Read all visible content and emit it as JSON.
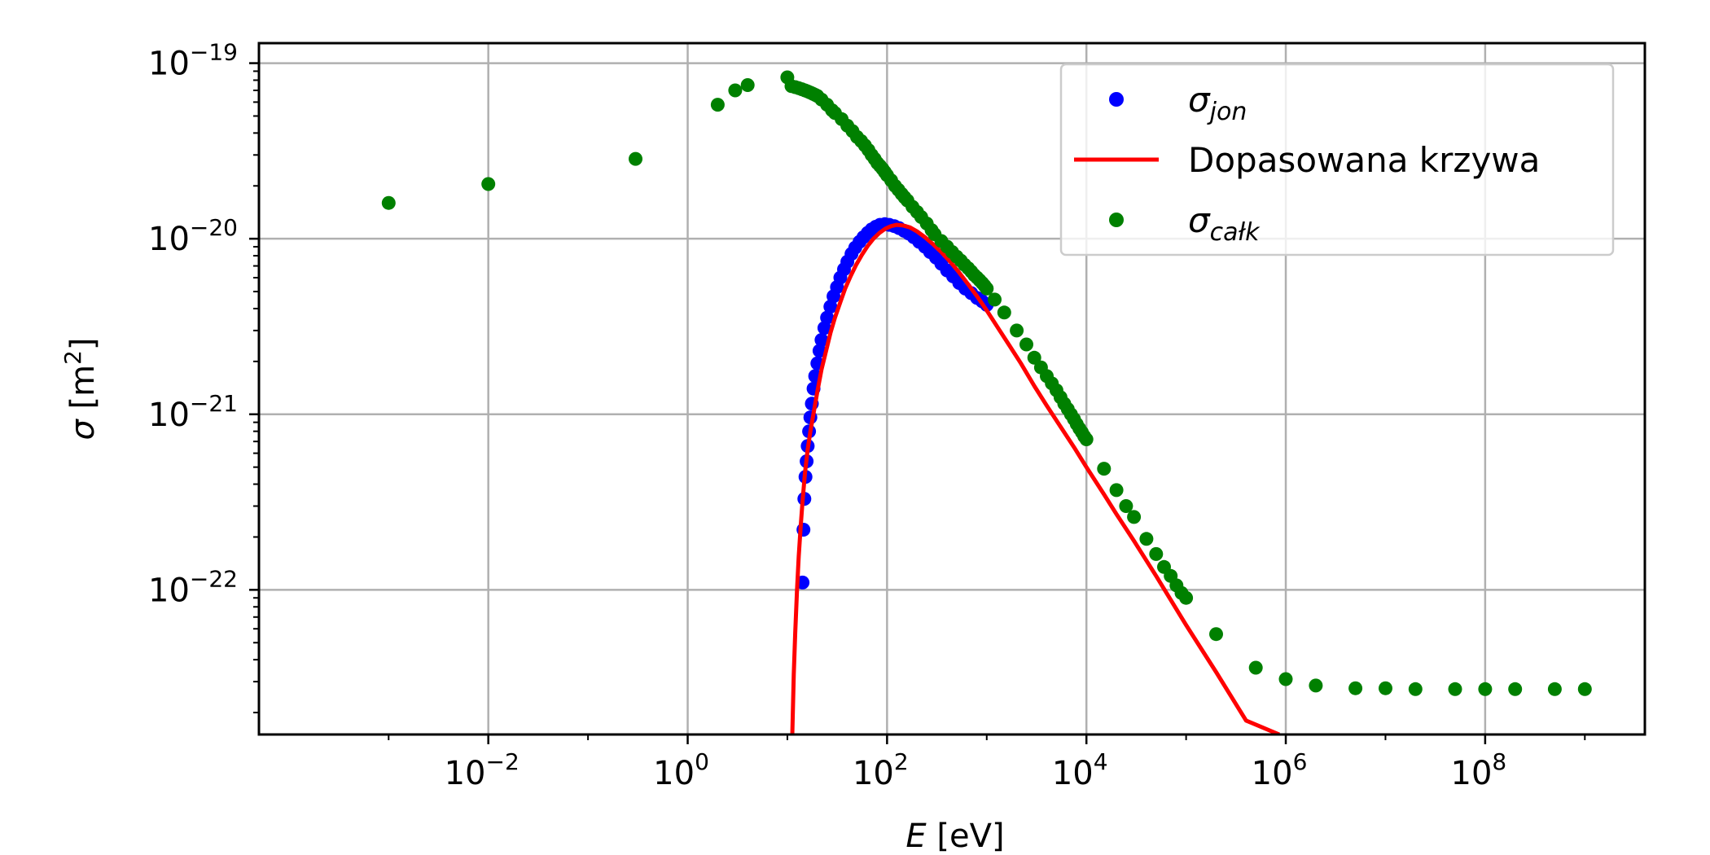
{
  "chart_data": {
    "type": "scatter",
    "xscale": "log",
    "yscale": "log",
    "xlim": [
      5e-05,
      4000000000
    ],
    "ylim": [
      1.5e-23,
      1.3e-19
    ],
    "grid": true,
    "legend_placement": "top-right",
    "xlabel": {
      "symbol": "E",
      "unit": " [eV]"
    },
    "ylabel": {
      "symbol": "σ",
      "unit_prefix": " [m",
      "unit_sup": "2",
      "unit_suffix": "]"
    },
    "xticks": [
      {
        "value": 0.01,
        "base": "10",
        "exp": "−2"
      },
      {
        "value": 1,
        "base": "10",
        "exp": "0"
      },
      {
        "value": 100,
        "base": "10",
        "exp": "2"
      },
      {
        "value": 10000,
        "base": "10",
        "exp": "4"
      },
      {
        "value": 1000000,
        "base": "10",
        "exp": "6"
      },
      {
        "value": 100000000,
        "base": "10",
        "exp": "8"
      }
    ],
    "yticks": [
      {
        "value": 1e-22,
        "base": "10",
        "exp": "−22"
      },
      {
        "value": 1e-21,
        "base": "10",
        "exp": "−21"
      },
      {
        "value": 1e-20,
        "base": "10",
        "exp": "−20"
      },
      {
        "value": 1e-19,
        "base": "10",
        "exp": "−19"
      }
    ],
    "series": [
      {
        "name_main": "σ",
        "name_sub": "jon",
        "kind": "scatter",
        "color": "#0000ff",
        "x": [
          14.2,
          14.5,
          14.8,
          15.2,
          15.6,
          16,
          16.5,
          17,
          17.6,
          18.3,
          19,
          20,
          21,
          22,
          23.5,
          25,
          27,
          29,
          31.5,
          34,
          37,
          40,
          44,
          48,
          53,
          58,
          64,
          70,
          77,
          85,
          95,
          105,
          118,
          132,
          148,
          165,
          185,
          210,
          240,
          270,
          310,
          350,
          400,
          460,
          530,
          610,
          700,
          800,
          900,
          1000
        ],
        "y": [
          1.1e-22,
          2.2e-22,
          3.3e-22,
          4.4e-22,
          5.4e-22,
          6.6e-22,
          8e-22,
          9.6e-22,
          1.15e-21,
          1.4e-21,
          1.65e-21,
          1.95e-21,
          2.3e-21,
          2.65e-21,
          3.1e-21,
          3.55e-21,
          4.1e-21,
          4.7e-21,
          5.3e-21,
          6e-21,
          6.7e-21,
          7.4e-21,
          8.2e-21,
          8.9e-21,
          9.6e-21,
          1.02e-20,
          1.08e-20,
          1.13e-20,
          1.17e-20,
          1.2e-20,
          1.21e-20,
          1.2e-20,
          1.18e-20,
          1.15e-20,
          1.11e-20,
          1.07e-20,
          1.02e-20,
          9.6e-21,
          9e-21,
          8.4e-21,
          7.8e-21,
          7.2e-21,
          6.6e-21,
          6.1e-21,
          5.6e-21,
          5.2e-21,
          4.9e-21,
          4.6e-21,
          4.4e-21,
          4.2e-21
        ]
      },
      {
        "name_main": "Dopasowana krzywa",
        "name_sub": "",
        "kind": "line",
        "color": "#ff0000",
        "x": [
          11.2,
          11.6,
          12,
          12.5,
          13,
          13.6,
          14.2,
          15,
          16,
          17,
          18.5,
          20,
          22,
          24,
          27,
          30,
          34,
          38,
          43,
          49,
          56,
          64,
          73,
          84,
          96,
          110,
          125,
          145,
          170,
          200,
          240,
          290,
          350,
          430,
          520,
          650,
          800,
          1000,
          1300,
          1700,
          2200,
          3000,
          4000,
          5500,
          7500,
          10000,
          15000,
          20000,
          30000,
          50000,
          100000,
          200000,
          400000,
          860000
        ],
        "y": [
          1.5e-23,
          3.3e-23,
          5.7e-23,
          1e-22,
          1.55e-22,
          2.3e-22,
          3.2e-22,
          4.6e-22,
          6.3e-22,
          8e-22,
          1.05e-21,
          1.35e-21,
          1.8e-21,
          2.2e-21,
          2.9e-21,
          3.55e-21,
          4.35e-21,
          5.2e-21,
          6.1e-21,
          7.1e-21,
          8.1e-21,
          9.1e-21,
          1e-20,
          1.08e-20,
          1.14e-20,
          1.18e-20,
          1.2e-20,
          1.19e-20,
          1.16e-20,
          1.1e-20,
          1.02e-20,
          9.3e-21,
          8.4e-21,
          7.4e-21,
          6.5e-21,
          5.5e-21,
          4.7e-21,
          3.9e-21,
          3.1e-21,
          2.45e-21,
          1.95e-21,
          1.45e-21,
          1.12e-21,
          8.5e-22,
          6.5e-22,
          5e-22,
          3.5e-22,
          2.7e-22,
          1.9e-22,
          1.2e-22,
          6.3e-23,
          3.4e-23,
          1.8e-23,
          1.5e-23
        ]
      },
      {
        "name_main": "σ",
        "name_sub": "całk",
        "kind": "scatter",
        "color": "#008000",
        "x": [
          0.001,
          0.01,
          0.3,
          2,
          3,
          4,
          10,
          11,
          12,
          13,
          14,
          15,
          16,
          17,
          18,
          19,
          20,
          22,
          25,
          28,
          30,
          35,
          40,
          45,
          50,
          55,
          60,
          65,
          70,
          75,
          80,
          85,
          90,
          95,
          100,
          110,
          120,
          130,
          140,
          150,
          160,
          180,
          200,
          220,
          250,
          280,
          300,
          350,
          400,
          450,
          500,
          550,
          600,
          650,
          700,
          750,
          800,
          850,
          900,
          950,
          1000,
          1200,
          1500,
          2000,
          2500,
          3000,
          3500,
          4000,
          4500,
          5000,
          5500,
          6000,
          6500,
          7000,
          7500,
          8000,
          8500,
          9000,
          9500,
          10000,
          15000,
          20000,
          25000,
          30000,
          40000,
          50000,
          60000,
          70000,
          80000,
          90000,
          100000,
          200000,
          500000,
          1000000,
          2000000,
          5000000,
          10000000,
          20000000,
          50000000,
          100000000,
          200000000,
          500000000,
          1000000000
        ],
        "y": [
          1.6e-20,
          2.05e-20,
          2.85e-20,
          5.8e-20,
          7e-20,
          7.5e-20,
          8.3e-20,
          7.4e-20,
          7.3e-20,
          7.2e-20,
          7.1e-20,
          7e-20,
          6.9e-20,
          6.8e-20,
          6.7e-20,
          6.6e-20,
          6.5e-20,
          6.2e-20,
          5.8e-20,
          5.4e-20,
          5.2e-20,
          4.8e-20,
          4.4e-20,
          4.1e-20,
          3.8e-20,
          3.6e-20,
          3.4e-20,
          3.2e-20,
          3e-20,
          2.85e-20,
          2.7e-20,
          2.6e-20,
          2.5e-20,
          2.4e-20,
          2.3e-20,
          2.15e-20,
          2e-20,
          1.9e-20,
          1.8e-20,
          1.72e-20,
          1.65e-20,
          1.52e-20,
          1.42e-20,
          1.33e-20,
          1.22e-20,
          1.12e-20,
          1.06e-20,
          9.7e-21,
          9e-21,
          8.4e-21,
          7.9e-21,
          7.5e-21,
          7.1e-21,
          6.8e-21,
          6.5e-21,
          6.2e-21,
          6e-21,
          5.8e-21,
          5.6e-21,
          5.4e-21,
          5.2e-21,
          4.5e-21,
          3.8e-21,
          3e-21,
          2.5e-21,
          2.1e-21,
          1.85e-21,
          1.65e-21,
          1.5e-21,
          1.37e-21,
          1.25e-21,
          1.15e-21,
          1.07e-21,
          1e-21,
          9.4e-22,
          8.8e-22,
          8.3e-22,
          7.9e-22,
          7.5e-22,
          7.2e-22,
          4.9e-22,
          3.7e-22,
          3e-22,
          2.6e-22,
          1.95e-22,
          1.6e-22,
          1.35e-22,
          1.2e-22,
          1.06e-22,
          9.6e-23,
          9e-23,
          5.6e-23,
          3.6e-23,
          3.1e-23,
          2.85e-23,
          2.75e-23,
          2.75e-23,
          2.72e-23,
          2.72e-23,
          2.72e-23,
          2.72e-23,
          2.72e-23,
          2.72e-23
        ]
      }
    ]
  }
}
